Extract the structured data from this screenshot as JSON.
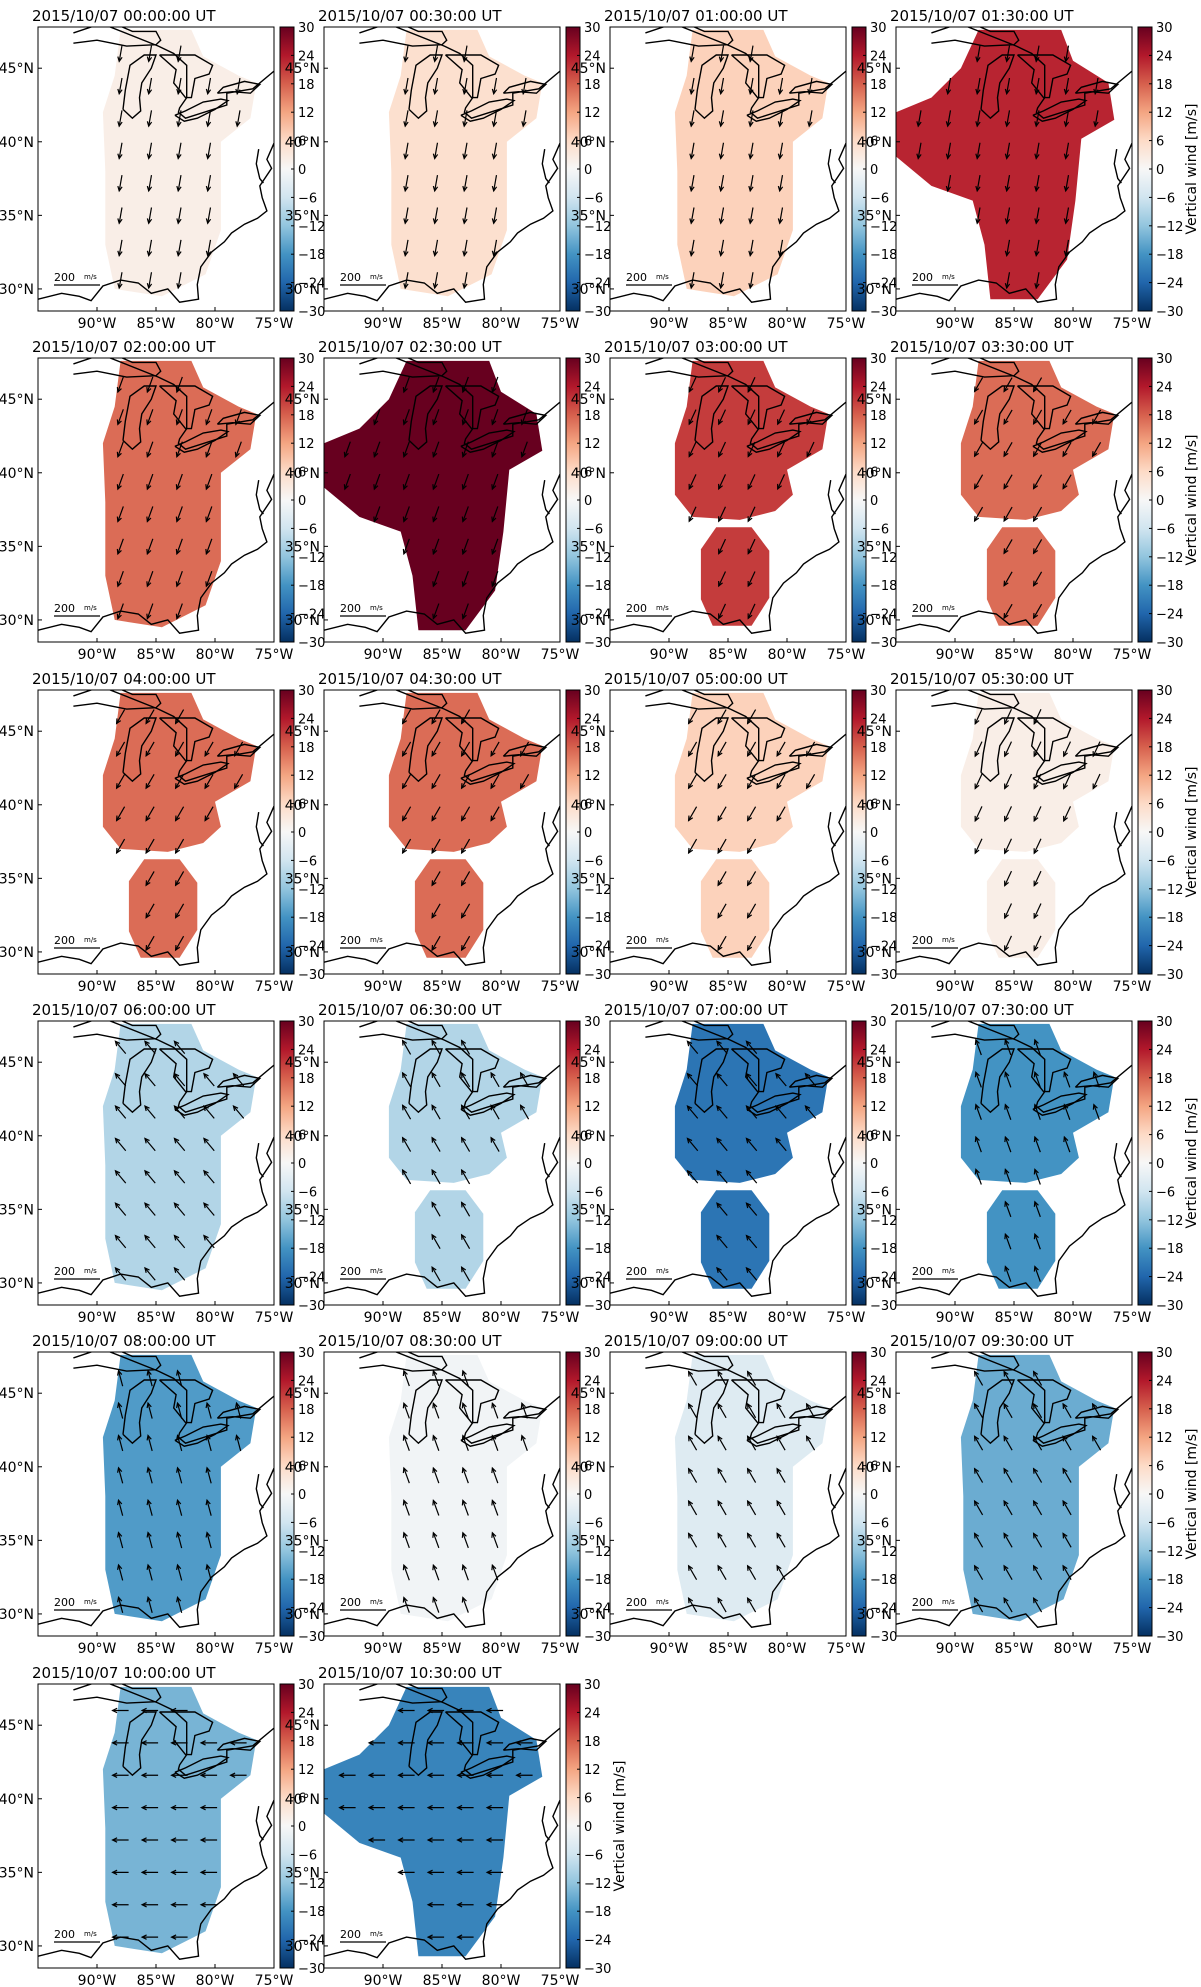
{
  "figure": {
    "colorbar": {
      "label": "Vertical wind [m/s]",
      "ticks": [
        30,
        24,
        18,
        12,
        6,
        0,
        -6,
        -12,
        -18,
        -24,
        -30
      ],
      "vmin": -30,
      "vmax": 30,
      "cmap": [
        "#053061",
        "#2166ac",
        "#4393c3",
        "#92c5de",
        "#d1e5f0",
        "#f7f7f7",
        "#fddbc7",
        "#f4a582",
        "#d6604d",
        "#b2182b",
        "#67001f"
      ]
    },
    "lat_labels": [
      "45°N",
      "40°N",
      "35°N",
      "30°N"
    ],
    "lon_labels": [
      "90°W",
      "85°W",
      "80°W",
      "75°W"
    ],
    "scale_label": "200",
    "scale_unit": "m/s",
    "panels": [
      {
        "title": "2015/10/07 00:00:00 UT",
        "value": 2,
        "regions": "one",
        "wind_angle": 100
      },
      {
        "title": "2015/10/07 00:30:00 UT",
        "value": 5,
        "regions": "one",
        "wind_angle": 100
      },
      {
        "title": "2015/10/07 01:00:00 UT",
        "value": 7,
        "regions": "one",
        "wind_angle": 100
      },
      {
        "title": "2015/10/07 01:30:00 UT",
        "value": 23,
        "regions": "large",
        "wind_angle": 100
      },
      {
        "title": "2015/10/07 02:00:00 UT",
        "value": 17,
        "regions": "one",
        "wind_angle": 110
      },
      {
        "title": "2015/10/07 02:30:00 UT",
        "value": 30,
        "regions": "large",
        "wind_angle": 110
      },
      {
        "title": "2015/10/07 03:00:00 UT",
        "value": 21,
        "regions": "two",
        "wind_angle": 115
      },
      {
        "title": "2015/10/07 03:30:00 UT",
        "value": 17,
        "regions": "two",
        "wind_angle": 120
      },
      {
        "title": "2015/10/07 04:00:00 UT",
        "value": 17,
        "regions": "two",
        "wind_angle": 120
      },
      {
        "title": "2015/10/07 04:30:00 UT",
        "value": 17,
        "regions": "two",
        "wind_angle": 120
      },
      {
        "title": "2015/10/07 05:00:00 UT",
        "value": 7,
        "regions": "two",
        "wind_angle": 120
      },
      {
        "title": "2015/10/07 05:30:00 UT",
        "value": 2,
        "regions": "two",
        "wind_angle": 115
      },
      {
        "title": "2015/10/07 06:00:00 UT",
        "value": -9,
        "regions": "one",
        "wind_angle": 230
      },
      {
        "title": "2015/10/07 06:30:00 UT",
        "value": -9,
        "regions": "two",
        "wind_angle": 240
      },
      {
        "title": "2015/10/07 07:00:00 UT",
        "value": -22,
        "regions": "two",
        "wind_angle": 230
      },
      {
        "title": "2015/10/07 07:30:00 UT",
        "value": -18,
        "regions": "two",
        "wind_angle": 250
      },
      {
        "title": "2015/10/07 08:00:00 UT",
        "value": -17,
        "regions": "one",
        "wind_angle": 255
      },
      {
        "title": "2015/10/07 08:30:00 UT",
        "value": -1,
        "regions": "one",
        "wind_angle": 250
      },
      {
        "title": "2015/10/07 09:00:00 UT",
        "value": -4,
        "regions": "one",
        "wind_angle": 240
      },
      {
        "title": "2015/10/07 09:30:00 UT",
        "value": -15,
        "regions": "one",
        "wind_angle": 240
      },
      {
        "title": "2015/10/07 10:00:00 UT",
        "value": -14,
        "regions": "one",
        "wind_angle": 180
      },
      {
        "title": "2015/10/07 10:30:00 UT",
        "value": -20,
        "regions": "large",
        "wind_angle": 180
      }
    ]
  }
}
